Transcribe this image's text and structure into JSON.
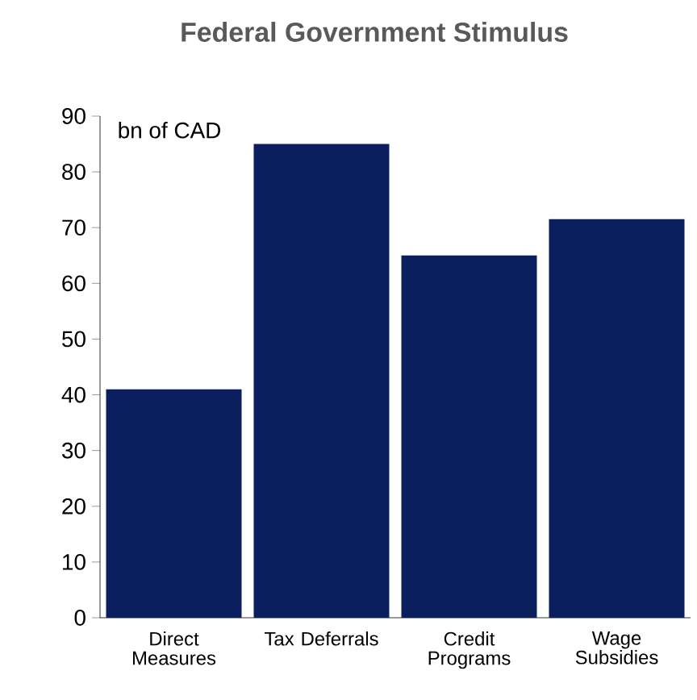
{
  "chart_data": {
    "type": "bar",
    "title": "Federal Government Stimulus",
    "ylabel": "bn of CAD",
    "categories": [
      "Direct Measures",
      "Tax Deferrals",
      "Credit Programs",
      "Wage Subsidies"
    ],
    "values": [
      41,
      85,
      65,
      71.5
    ],
    "color": "#0b1f5e",
    "ylim": [
      0,
      90
    ],
    "yticks": [
      0,
      10,
      20,
      30,
      40,
      50,
      60,
      70,
      80,
      90
    ]
  }
}
